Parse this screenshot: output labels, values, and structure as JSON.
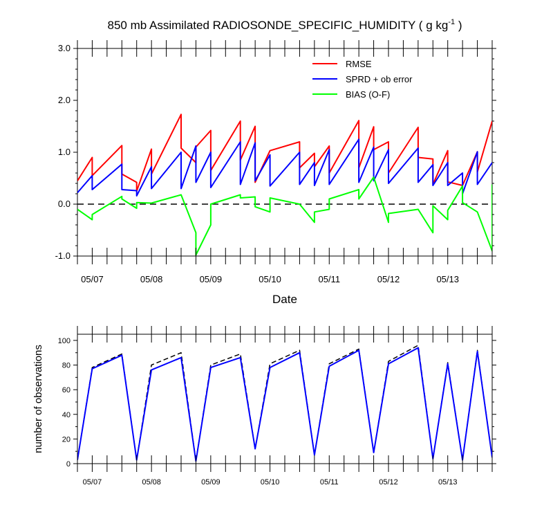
{
  "title": "850 mb Assimilated RADIOSONDE_SPECIFIC_HUMIDITY ( g kg",
  "title_exp": "-1",
  "title_tail": " )",
  "colors": {
    "rmse": "#ff0000",
    "sprd": "#0000ff",
    "bias": "#00ff00",
    "zero_line": "#000000",
    "available": "#000000",
    "used": "#0000ff"
  },
  "chart_data": [
    {
      "type": "line",
      "xlabel": "Date",
      "ylabel": "",
      "ylim": [
        -1.0,
        3.0
      ],
      "xlim": [
        0,
        28
      ],
      "yticks": [
        -1.0,
        0.0,
        1.0,
        2.0,
        3.0
      ],
      "ytick_labels": [
        "-1.0",
        "0.0",
        "1.0",
        "2.0",
        "3.0"
      ],
      "date_ticks": [
        1,
        5,
        9,
        13,
        17,
        21,
        25
      ],
      "date_labels": [
        "05/07",
        "05/08",
        "05/09",
        "05/10",
        "05/11",
        "05/12",
        "05/13"
      ],
      "reference_line": 0.0,
      "legend_position": "top-right",
      "series": [
        {
          "name": "RMSE",
          "points": [
            [
              0,
              0.45
            ],
            [
              1,
              0.9
            ],
            [
              1,
              0.55
            ],
            [
              3,
              1.13
            ],
            [
              3,
              0.58
            ],
            [
              4,
              0.42
            ],
            [
              4,
              0.25
            ],
            [
              5,
              1.06
            ],
            [
              5,
              0.58
            ],
            [
              7,
              1.73
            ],
            [
              7,
              1.08
            ],
            [
              8,
              0.8
            ],
            [
              8,
              1.1
            ],
            [
              9,
              1.42
            ],
            [
              9,
              0.65
            ],
            [
              11,
              1.6
            ],
            [
              11,
              0.85
            ],
            [
              12,
              1.5
            ],
            [
              12,
              0.42
            ],
            [
              13,
              1.03
            ],
            [
              15,
              1.2
            ],
            [
              15,
              0.7
            ],
            [
              16,
              0.98
            ],
            [
              16,
              0.72
            ],
            [
              17,
              1.12
            ],
            [
              17,
              0.6
            ],
            [
              19,
              1.61
            ],
            [
              19,
              0.7
            ],
            [
              20,
              1.49
            ],
            [
              20,
              1.05
            ],
            [
              21,
              1.2
            ],
            [
              21,
              0.6
            ],
            [
              23,
              1.48
            ],
            [
              23,
              0.9
            ],
            [
              24,
              0.87
            ],
            [
              24,
              0.38
            ],
            [
              25,
              1.03
            ],
            [
              25,
              0.43
            ],
            [
              26,
              0.36
            ],
            [
              27,
              1.01
            ],
            [
              27,
              0.62
            ],
            [
              28,
              1.6
            ]
          ]
        },
        {
          "name": "SPRD + ob error",
          "points": [
            [
              0,
              0.22
            ],
            [
              1,
              0.55
            ],
            [
              1,
              0.28
            ],
            [
              3,
              0.77
            ],
            [
              3,
              0.28
            ],
            [
              4,
              0.26
            ],
            [
              4,
              0.16
            ],
            [
              5,
              0.72
            ],
            [
              5,
              0.3
            ],
            [
              7,
              1.0
            ],
            [
              7,
              0.3
            ],
            [
              8,
              1.12
            ],
            [
              8,
              0.42
            ],
            [
              9,
              1.0
            ],
            [
              9,
              0.32
            ],
            [
              11,
              1.2
            ],
            [
              11,
              0.38
            ],
            [
              12,
              1.18
            ],
            [
              12,
              0.45
            ],
            [
              13,
              0.95
            ],
            [
              13,
              0.35
            ],
            [
              15,
              1.0
            ],
            [
              15,
              0.38
            ],
            [
              16,
              0.8
            ],
            [
              16,
              0.36
            ],
            [
              17,
              1.05
            ],
            [
              17,
              0.38
            ],
            [
              19,
              1.25
            ],
            [
              19,
              0.42
            ],
            [
              20,
              1.1
            ],
            [
              20,
              0.45
            ],
            [
              21,
              1.05
            ],
            [
              21,
              0.4
            ],
            [
              23,
              1.08
            ],
            [
              23,
              0.42
            ],
            [
              24,
              0.76
            ],
            [
              24,
              0.36
            ],
            [
              25,
              0.8
            ],
            [
              25,
              0.36
            ],
            [
              26,
              0.6
            ],
            [
              26,
              0.2
            ],
            [
              27,
              1.01
            ],
            [
              27,
              0.38
            ],
            [
              28,
              0.8
            ]
          ]
        },
        {
          "name": "BIAS (O-F)",
          "points": [
            [
              0,
              -0.1
            ],
            [
              1,
              -0.3
            ],
            [
              1,
              -0.2
            ],
            [
              3,
              0.15
            ],
            [
              3,
              0.1
            ],
            [
              4,
              -0.08
            ],
            [
              4,
              0.03
            ],
            [
              5,
              0.02
            ],
            [
              7,
              0.18
            ],
            [
              8,
              -0.55
            ],
            [
              8,
              -0.98
            ],
            [
              9,
              -0.4
            ],
            [
              9,
              0.0
            ],
            [
              11,
              0.18
            ],
            [
              11,
              0.12
            ],
            [
              12,
              0.14
            ],
            [
              12,
              -0.05
            ],
            [
              13,
              -0.15
            ],
            [
              13,
              0.12
            ],
            [
              15,
              0.0
            ],
            [
              16,
              -0.35
            ],
            [
              16,
              -0.15
            ],
            [
              17,
              -0.1
            ],
            [
              17,
              0.1
            ],
            [
              19,
              0.28
            ],
            [
              19,
              0.1
            ],
            [
              20,
              0.52
            ],
            [
              21,
              -0.35
            ],
            [
              21,
              -0.18
            ],
            [
              23,
              -0.1
            ],
            [
              24,
              -0.55
            ],
            [
              24,
              -0.03
            ],
            [
              25,
              -0.3
            ],
            [
              25,
              -0.12
            ],
            [
              26,
              0.35
            ],
            [
              26,
              0.03
            ],
            [
              27,
              -0.15
            ],
            [
              28,
              -0.9
            ],
            [
              28,
              0.38
            ]
          ]
        }
      ]
    },
    {
      "type": "line",
      "xlabel": "",
      "ylabel": "number of observations",
      "ylim": [
        0,
        105
      ],
      "xlim": [
        0,
        28
      ],
      "yticks": [
        0,
        20,
        40,
        60,
        80,
        100
      ],
      "ytick_labels": [
        "0",
        "20",
        "40",
        "60",
        "80",
        "100"
      ],
      "date_ticks": [
        1,
        5,
        9,
        13,
        17,
        21,
        25
      ],
      "date_labels": [
        "05/07",
        "05/08",
        "05/09",
        "05/10",
        "05/11",
        "05/12",
        "05/13"
      ],
      "series": [
        {
          "name": "",
          "color": "#000000",
          "style": "dashed",
          "x": [
            0,
            1,
            3,
            4,
            5,
            7,
            8,
            9,
            11,
            12,
            13,
            15,
            16,
            17,
            19,
            20,
            21,
            23,
            24,
            25,
            26,
            27,
            28
          ],
          "y": [
            3,
            78,
            89,
            3,
            80,
            90,
            2,
            80,
            89,
            12,
            81,
            92,
            7,
            81,
            93,
            9,
            83,
            96,
            4,
            82,
            3,
            92,
            5
          ]
        },
        {
          "name": "",
          "color": "#0000ff",
          "style": "solid",
          "x": [
            0,
            1,
            3,
            4,
            5,
            7,
            8,
            9,
            11,
            12,
            13,
            15,
            16,
            17,
            19,
            20,
            21,
            23,
            24,
            25,
            26,
            27,
            28
          ],
          "y": [
            3,
            77,
            88,
            3,
            76,
            86,
            2,
            78,
            86,
            12,
            78,
            90,
            7,
            79,
            92,
            9,
            81,
            94,
            4,
            81,
            3,
            91,
            5
          ]
        }
      ]
    }
  ]
}
